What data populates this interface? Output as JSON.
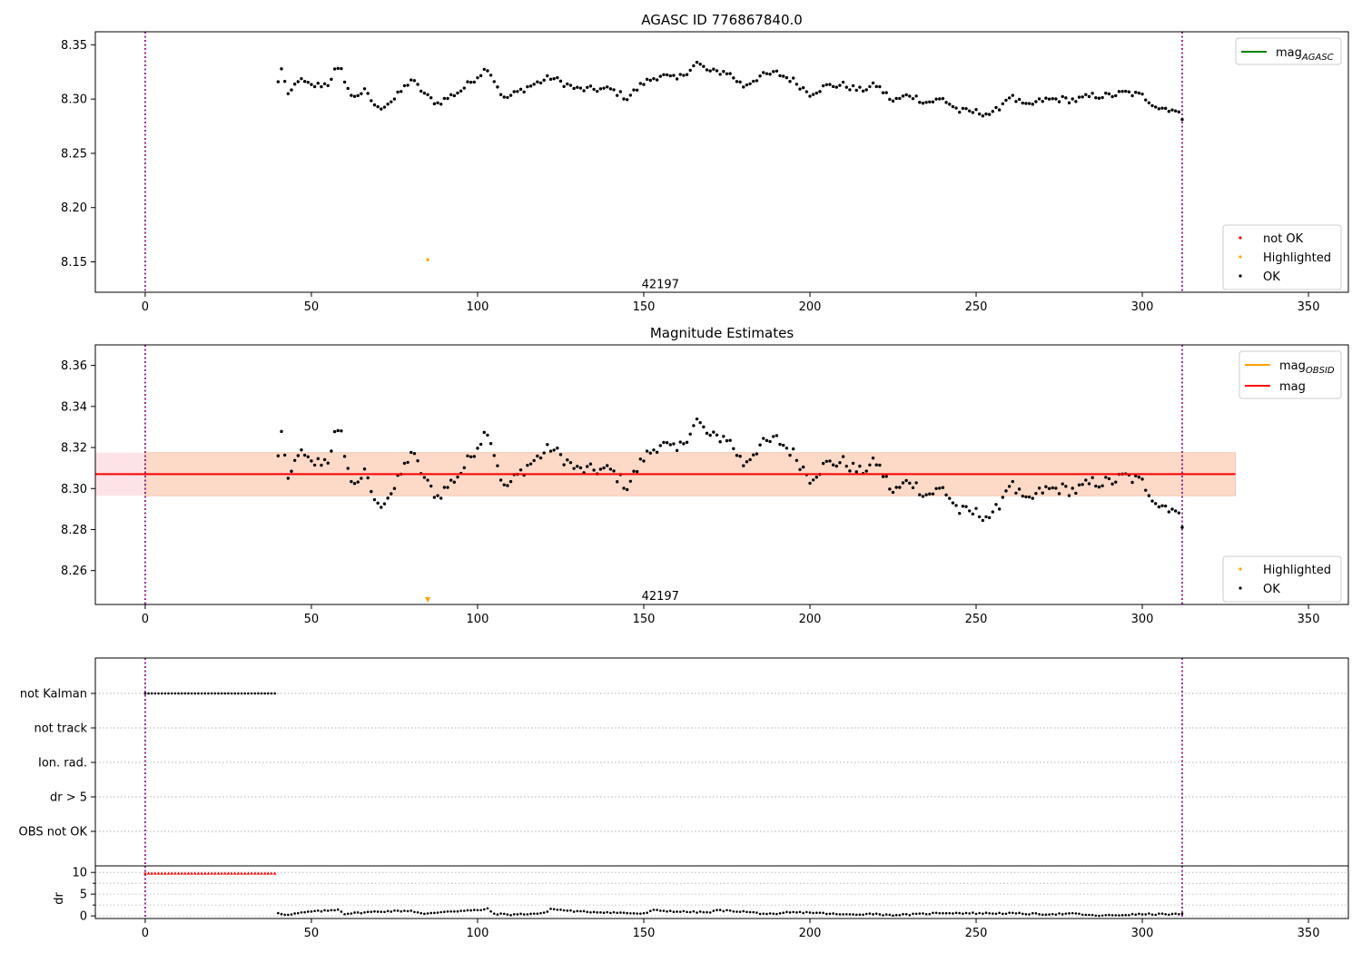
{
  "chart_data": [
    {
      "type": "scatter",
      "title": "AGASC ID 776867840.0",
      "xlim": [
        -15,
        362
      ],
      "ylim": [
        8.122,
        8.362
      ],
      "xticks": [
        0,
        50,
        100,
        150,
        200,
        250,
        300,
        350
      ],
      "yticks": [
        8.15,
        8.2,
        8.25,
        8.3,
        8.35
      ],
      "ytick_labels": [
        "8.15",
        "8.20",
        "8.25",
        "8.30",
        "8.35"
      ],
      "vlines": [
        0,
        312
      ],
      "vline_color": "#800080",
      "annotation": {
        "text": "42197",
        "x": 155,
        "y": 8.129
      },
      "legend_line": {
        "label_main": "mag",
        "label_sub": "AGASC",
        "color": "#008000",
        "placement": "top-right"
      },
      "legend_points": [
        {
          "label": "not OK",
          "color": "#ff0000"
        },
        {
          "label": "Highlighted",
          "color": "#ffa500"
        },
        {
          "label": "OK",
          "color": "#000000"
        }
      ],
      "legend_points_placement": "bottom-right",
      "highlighted": [
        {
          "x": 85,
          "y": 8.152
        }
      ],
      "series_ok": {
        "x_start": 40,
        "x_end": 312,
        "anchors": [
          [
            40,
            8.315
          ],
          [
            41,
            8.329
          ],
          [
            43,
            8.302
          ],
          [
            46,
            8.318
          ],
          [
            50,
            8.312
          ],
          [
            55,
            8.314
          ],
          [
            57,
            8.326
          ],
          [
            59,
            8.326
          ],
          [
            62,
            8.302
          ],
          [
            66,
            8.307
          ],
          [
            70,
            8.291
          ],
          [
            75,
            8.3
          ],
          [
            80,
            8.318
          ],
          [
            85,
            8.302
          ],
          [
            88,
            8.296
          ],
          [
            95,
            8.308
          ],
          [
            103,
            8.329
          ],
          [
            108,
            8.3
          ],
          [
            115,
            8.311
          ],
          [
            122,
            8.32
          ],
          [
            130,
            8.309
          ],
          [
            140,
            8.309
          ],
          [
            145,
            8.301
          ],
          [
            150,
            8.315
          ],
          [
            155,
            8.322
          ],
          [
            160,
            8.318
          ],
          [
            166,
            8.333
          ],
          [
            170,
            8.325
          ],
          [
            175,
            8.325
          ],
          [
            180,
            8.312
          ],
          [
            185,
            8.321
          ],
          [
            190,
            8.324
          ],
          [
            195,
            8.317
          ],
          [
            200,
            8.305
          ],
          [
            205,
            8.312
          ],
          [
            210,
            8.313
          ],
          [
            215,
            8.308
          ],
          [
            220,
            8.313
          ],
          [
            225,
            8.298
          ],
          [
            230,
            8.304
          ],
          [
            235,
            8.297
          ],
          [
            240,
            8.3
          ],
          [
            245,
            8.289
          ],
          [
            250,
            8.288
          ],
          [
            255,
            8.286
          ],
          [
            260,
            8.303
          ],
          [
            265,
            8.293
          ],
          [
            270,
            8.299
          ],
          [
            275,
            8.3
          ],
          [
            280,
            8.299
          ],
          [
            285,
            8.303
          ],
          [
            290,
            8.303
          ],
          [
            295,
            8.306
          ],
          [
            300,
            8.303
          ],
          [
            305,
            8.292
          ],
          [
            309,
            8.291
          ],
          [
            312,
            8.283
          ]
        ],
        "noise": 0.003
      }
    },
    {
      "type": "scatter",
      "title": "Magnitude Estimates",
      "xlim": [
        -15,
        362
      ],
      "ylim": [
        8.2435,
        8.37
      ],
      "xticks": [
        0,
        50,
        100,
        150,
        200,
        250,
        300,
        350
      ],
      "yticks": [
        8.26,
        8.28,
        8.3,
        8.32,
        8.34,
        8.36
      ],
      "ytick_labels": [
        "8.26",
        "8.28",
        "8.30",
        "8.32",
        "8.34",
        "8.36"
      ],
      "vlines": [
        0,
        312
      ],
      "vline_color": "#800080",
      "annotation": {
        "text": "42197",
        "x": 155,
        "y": 8.2475
      },
      "mean_line": {
        "y": 8.307,
        "x_end": 328,
        "color": "#ff0000"
      },
      "band_obsid": {
        "y_low": 8.2965,
        "y_high": 8.3175,
        "x_end": 328,
        "fill": "#fdd9c8",
        "edge": "#f7c9b0"
      },
      "band_pink": {
        "y_low": 8.2965,
        "y_high": 8.3175,
        "fill": "#fde3e7"
      },
      "legend_lines": [
        {
          "label_main": "mag",
          "label_sub": "OBSID",
          "color": "#ffa500"
        },
        {
          "label_main": "mag",
          "label_sub": "",
          "color": "#ff0000"
        }
      ],
      "legend_lines_placement": "top-right",
      "legend_points": [
        {
          "label": "Highlighted",
          "color": "#ffa500"
        },
        {
          "label": "OK",
          "color": "#000000"
        }
      ],
      "legend_points_placement": "bottom-right",
      "highlighted_marker": {
        "x": 85,
        "shape": "triangle-down",
        "color": "#ffa500"
      }
    },
    {
      "type": "scatter",
      "title": "",
      "xlim": [
        -15,
        362
      ],
      "category_rows": [
        "not Kalman",
        "not track",
        "Ion. rad.",
        "dr > 5",
        "OBS not OK"
      ],
      "row_flags": [
        {
          "row": "not Kalman",
          "x_start": 0,
          "x_end": 39
        }
      ],
      "vlines": [
        0,
        312
      ],
      "vline_color": "#800080"
    },
    {
      "type": "scatter",
      "title": "",
      "ylabel": "dr",
      "xlim": [
        -15,
        362
      ],
      "ylim": [
        -0.6,
        11.5
      ],
      "xticks": [
        0,
        50,
        100,
        150,
        200,
        250,
        300,
        350
      ],
      "yticks": [
        0,
        5,
        10
      ],
      "ytick_labels": [
        "0",
        "5",
        "10"
      ],
      "vlines": [
        0,
        312
      ],
      "vline_color": "#800080",
      "clipped_points": {
        "x_start": 0,
        "x_end": 39,
        "y": 9.8,
        "color": "#ff0000"
      },
      "series_dr": {
        "x_start": 40,
        "x_end": 312,
        "anchors": [
          [
            40,
            0.7
          ],
          [
            43,
            0.2
          ],
          [
            46,
            0.6
          ],
          [
            50,
            1.0
          ],
          [
            55,
            1.2
          ],
          [
            58,
            1.5
          ],
          [
            60,
            0.5
          ],
          [
            70,
            1.0
          ],
          [
            80,
            1.2
          ],
          [
            84,
            0.4
          ],
          [
            90,
            1.0
          ],
          [
            100,
            1.3
          ],
          [
            103,
            1.6
          ],
          [
            105,
            0.5
          ],
          [
            110,
            0.3
          ],
          [
            120,
            0.6
          ],
          [
            122,
            1.6
          ],
          [
            130,
            1.0
          ],
          [
            140,
            0.8
          ],
          [
            150,
            0.5
          ],
          [
            153,
            1.3
          ],
          [
            160,
            1.0
          ],
          [
            170,
            0.8
          ],
          [
            172,
            1.3
          ],
          [
            180,
            1.0
          ],
          [
            185,
            0.6
          ],
          [
            190,
            0.3
          ],
          [
            193,
            0.8
          ],
          [
            200,
            0.8
          ],
          [
            210,
            0.3
          ],
          [
            220,
            0.5
          ],
          [
            223,
            0.2
          ],
          [
            230,
            0.3
          ],
          [
            240,
            0.7
          ],
          [
            250,
            0.6
          ],
          [
            260,
            0.6
          ],
          [
            270,
            0.4
          ],
          [
            280,
            0.5
          ],
          [
            285,
            0.1
          ],
          [
            290,
            0.1
          ],
          [
            300,
            0.4
          ],
          [
            312,
            0.4
          ]
        ],
        "noise": 0.15
      }
    }
  ]
}
